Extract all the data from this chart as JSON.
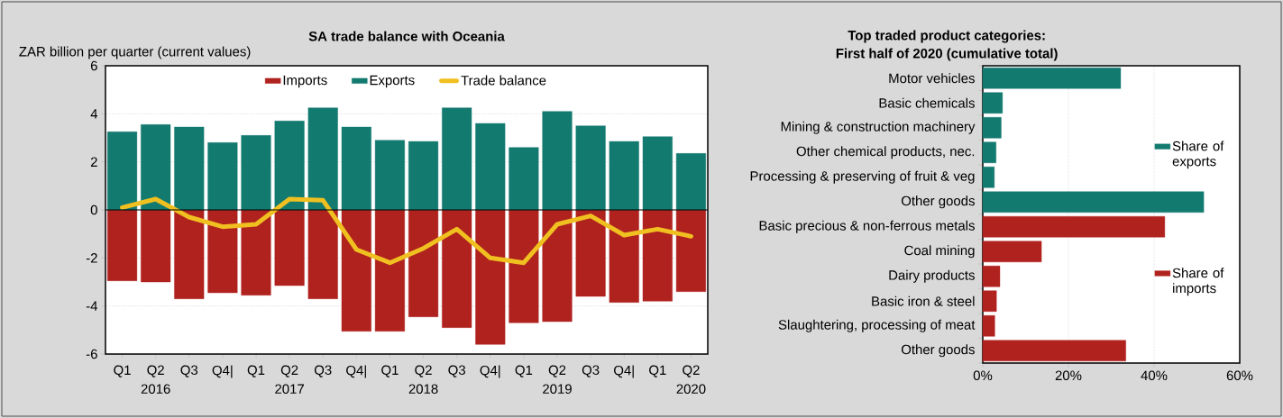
{
  "chart_data": [
    {
      "type": "bar",
      "title": "SA trade balance with Oceania",
      "ylabel": "ZAR billion per quarter (current values)",
      "categories": [
        "Q1",
        "Q2",
        "Q3",
        "Q4|",
        "Q1",
        "Q2",
        "Q3",
        "Q4|",
        "Q1",
        "Q2",
        "Q3",
        "Q4|",
        "Q1",
        "Q2",
        "Q3",
        "Q4|",
        "Q1",
        "Q2"
      ],
      "series": [
        {
          "name": "Imports",
          "color": "#b0221e",
          "values": [
            -2.95,
            -3.0,
            -3.7,
            -3.45,
            -3.55,
            -3.15,
            -3.7,
            -5.05,
            -5.05,
            -4.45,
            -4.9,
            -5.6,
            -4.7,
            -4.65,
            -3.6,
            -3.85,
            -3.8,
            -3.4
          ]
        },
        {
          "name": "Exports",
          "color": "#137a70",
          "values": [
            3.25,
            3.55,
            3.45,
            2.8,
            3.1,
            3.7,
            4.25,
            3.45,
            2.9,
            2.85,
            4.25,
            3.6,
            2.6,
            4.1,
            3.5,
            2.85,
            3.05,
            2.35
          ]
        },
        {
          "name": "Trade balance",
          "type": "line",
          "color": "#f0c020",
          "values": [
            0.1,
            0.45,
            -0.3,
            -0.7,
            -0.6,
            0.45,
            0.4,
            -1.65,
            -2.2,
            -1.6,
            -0.8,
            -2.0,
            -2.2,
            -0.6,
            -0.25,
            -1.05,
            -0.8,
            -1.1
          ]
        }
      ],
      "annotations": [
        "2016",
        "2017",
        "2018",
        "2019",
        "2020"
      ],
      "ylim": [
        -6,
        6
      ],
      "yticks": [
        -6,
        -4,
        -2,
        0,
        2,
        4,
        6
      ],
      "grid": "y",
      "legend": "top",
      "stacked": true
    },
    {
      "type": "bar",
      "orientation": "horizontal",
      "title": "Top traded product categories:",
      "subtitle": "First half of 2020 (cumulative total)",
      "categories": [
        "Motor vehicles",
        "Basic chemicals",
        "Mining & construction machinery",
        "Other chemical products, nec.",
        "Processing & preserving of fruit & veg",
        "Other goods",
        "Basic precious & non-ferrous metals",
        "Coal mining",
        "Dairy products",
        "Basic iron & steel",
        "Slaughtering, processing of meat",
        "Other goods"
      ],
      "series": [
        {
          "name": "Share of exports",
          "color": "#137a70",
          "values": [
            32.2,
            4.6,
            4.3,
            3.1,
            2.7,
            51.6,
            null,
            null,
            null,
            null,
            null,
            null
          ]
        },
        {
          "name": "Share of imports",
          "color": "#b0221e",
          "values": [
            null,
            null,
            null,
            null,
            null,
            null,
            42.5,
            13.7,
            4.0,
            3.2,
            2.8,
            33.4
          ]
        }
      ],
      "xlim": [
        0,
        60
      ],
      "xticks": [
        {
          "value": 0,
          "label": "0%"
        },
        {
          "value": 20,
          "label": "20%"
        },
        {
          "value": 40,
          "label": "40%"
        },
        {
          "value": 60,
          "label": "60%"
        }
      ],
      "grid": "x",
      "legend": "right"
    }
  ]
}
